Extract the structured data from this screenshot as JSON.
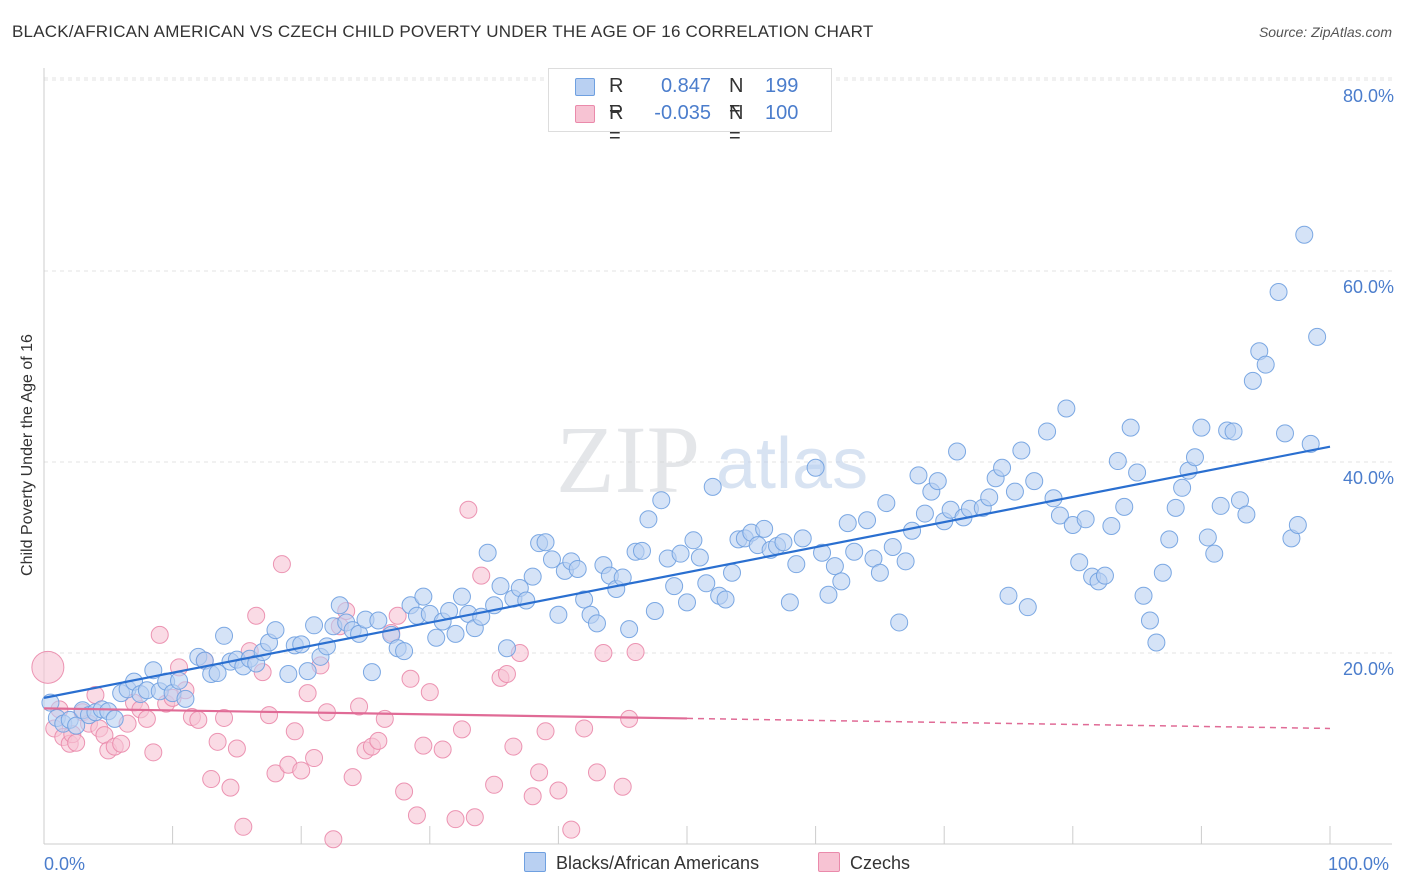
{
  "title": "BLACK/AFRICAN AMERICAN VS CZECH CHILD POVERTY UNDER THE AGE OF 16 CORRELATION CHART",
  "source": "Source: ZipAtlas.com",
  "watermark": {
    "zip": "ZIP",
    "atlas": "atlas"
  },
  "legend": {
    "r_label": "R =",
    "n_label": "N =",
    "series": [
      {
        "name": "Blacks/African Americans",
        "r": "0.847",
        "n": "199",
        "color": "#6fa0e0",
        "fill": "#b9d0f2"
      },
      {
        "name": "Czechs",
        "r": "-0.035",
        "n": "100",
        "color": "#ea8aab",
        "fill": "#f7c3d3"
      }
    ]
  },
  "colors": {
    "accent_text": "#4b7dcc",
    "blue_line": "#2a6fd0",
    "pink_line": "#e06b96"
  },
  "chart_data": {
    "type": "scatter",
    "title": "BLACK/AFRICAN AMERICAN VS CZECH CHILD POVERTY UNDER THE AGE OF 16 CORRELATION CHART",
    "xlabel": "",
    "ylabel": "Child Poverty Under the Age of 16",
    "xlim": [
      0,
      100
    ],
    "ylim": [
      0,
      80
    ],
    "x_tick_labels": [
      "0.0%",
      "100.0%"
    ],
    "y_tick_labels": [
      {
        "value": 20,
        "label": "20.0%"
      },
      {
        "value": 40,
        "label": "40.0%"
      },
      {
        "value": 60,
        "label": "60.0%"
      },
      {
        "value": 80,
        "label": "80.0%"
      }
    ],
    "grid": true,
    "series": [
      {
        "name": "Blacks/African Americans",
        "r": 0.847,
        "n": 199,
        "trend": {
          "x0": 0,
          "y0": 15.3,
          "x1": 100,
          "y1": 41.6,
          "dashed_from": null
        },
        "points": [
          [
            0.5,
            14.8
          ],
          [
            1,
            13.2
          ],
          [
            1.5,
            12.6
          ],
          [
            2,
            13
          ],
          [
            2.5,
            12.4
          ],
          [
            3,
            14
          ],
          [
            3.5,
            13.5
          ],
          [
            4,
            13.8
          ],
          [
            4.5,
            14.1
          ],
          [
            5,
            13.9
          ],
          [
            5.5,
            13.1
          ],
          [
            6,
            15.8
          ],
          [
            6.5,
            16.2
          ],
          [
            7,
            17
          ],
          [
            7.5,
            15.7
          ],
          [
            8,
            16.1
          ],
          [
            8.5,
            18.2
          ],
          [
            9,
            16
          ],
          [
            9.5,
            17
          ],
          [
            10,
            15.8
          ],
          [
            10.5,
            17.1
          ],
          [
            11,
            15.2
          ],
          [
            12,
            19.6
          ],
          [
            12.5,
            19.2
          ],
          [
            13,
            17.8
          ],
          [
            13.5,
            17.9
          ],
          [
            14,
            21.8
          ],
          [
            14.5,
            19.1
          ],
          [
            15,
            19.3
          ],
          [
            15.5,
            18.6
          ],
          [
            16,
            19.4
          ],
          [
            16.5,
            18.9
          ],
          [
            17,
            20.1
          ],
          [
            17.5,
            21.1
          ],
          [
            18,
            22.4
          ],
          [
            19,
            17.8
          ],
          [
            19.5,
            20.8
          ],
          [
            20,
            20.9
          ],
          [
            20.5,
            18.1
          ],
          [
            21,
            22.9
          ],
          [
            21.5,
            19.6
          ],
          [
            22,
            20.7
          ],
          [
            22.5,
            22.8
          ],
          [
            23,
            25
          ],
          [
            23.5,
            23.2
          ],
          [
            24,
            22.4
          ],
          [
            24.5,
            22
          ],
          [
            25,
            23.5
          ],
          [
            25.5,
            18
          ],
          [
            26,
            23.4
          ],
          [
            27,
            21.9
          ],
          [
            27.5,
            20.5
          ],
          [
            28,
            20.2
          ],
          [
            28.5,
            25
          ],
          [
            29,
            23.9
          ],
          [
            29.5,
            25.9
          ],
          [
            30,
            24.1
          ],
          [
            30.5,
            21.6
          ],
          [
            31,
            23.3
          ],
          [
            31.5,
            24.4
          ],
          [
            32,
            22
          ],
          [
            32.5,
            25.9
          ],
          [
            33,
            24.1
          ],
          [
            33.5,
            22.6
          ],
          [
            34,
            23.8
          ],
          [
            34.5,
            30.5
          ],
          [
            35,
            25
          ],
          [
            35.5,
            27
          ],
          [
            36,
            20.5
          ],
          [
            36.5,
            25.7
          ],
          [
            37,
            26.8
          ],
          [
            37.5,
            25.5
          ],
          [
            38,
            28
          ],
          [
            38.5,
            31.5
          ],
          [
            39,
            31.6
          ],
          [
            39.5,
            29.8
          ],
          [
            40,
            24
          ],
          [
            40.5,
            28.6
          ],
          [
            41,
            29.6
          ],
          [
            41.5,
            28.8
          ],
          [
            42,
            25.6
          ],
          [
            42.5,
            24
          ],
          [
            43,
            23.1
          ],
          [
            43.5,
            29.2
          ],
          [
            44,
            28.1
          ],
          [
            44.5,
            26.7
          ],
          [
            45,
            27.9
          ],
          [
            45.5,
            22.5
          ],
          [
            46,
            30.6
          ],
          [
            46.5,
            30.7
          ],
          [
            47,
            34
          ],
          [
            47.5,
            24.4
          ],
          [
            48,
            36
          ],
          [
            48.5,
            29.9
          ],
          [
            49,
            27
          ],
          [
            49.5,
            30.4
          ],
          [
            50,
            25.3
          ],
          [
            50.5,
            31.8
          ],
          [
            51,
            30
          ],
          [
            51.5,
            27.3
          ],
          [
            52,
            37.4
          ],
          [
            52.5,
            26
          ],
          [
            53,
            25.6
          ],
          [
            53.5,
            28.4
          ],
          [
            54,
            31.9
          ],
          [
            54.5,
            32
          ],
          [
            55,
            32.6
          ],
          [
            55.5,
            31.3
          ],
          [
            56,
            33
          ],
          [
            56.5,
            30.8
          ],
          [
            57,
            31.2
          ],
          [
            57.5,
            31.6
          ],
          [
            58,
            25.3
          ],
          [
            58.5,
            29.3
          ],
          [
            59,
            32
          ],
          [
            60,
            39.4
          ],
          [
            60.5,
            30.5
          ],
          [
            61,
            26.1
          ],
          [
            61.5,
            29.1
          ],
          [
            62,
            27.5
          ],
          [
            62.5,
            33.6
          ],
          [
            63,
            30.6
          ],
          [
            64,
            33.9
          ],
          [
            64.5,
            29.9
          ],
          [
            65,
            28.4
          ],
          [
            65.5,
            35.7
          ],
          [
            66,
            31.1
          ],
          [
            66.5,
            23.2
          ],
          [
            67,
            29.6
          ],
          [
            67.5,
            32.8
          ],
          [
            68,
            38.6
          ],
          [
            68.5,
            34.6
          ],
          [
            69,
            36.9
          ],
          [
            69.5,
            38
          ],
          [
            70,
            33.8
          ],
          [
            70.5,
            35
          ],
          [
            71,
            41.1
          ],
          [
            71.5,
            34.2
          ],
          [
            72,
            35.1
          ],
          [
            73,
            35.2
          ],
          [
            73.5,
            36.3
          ],
          [
            74,
            38.3
          ],
          [
            74.5,
            39.4
          ],
          [
            75,
            26
          ],
          [
            75.5,
            36.9
          ],
          [
            76,
            41.2
          ],
          [
            76.5,
            24.8
          ],
          [
            77,
            38
          ],
          [
            78,
            43.2
          ],
          [
            78.5,
            36.2
          ],
          [
            79,
            34.4
          ],
          [
            79.5,
            45.6
          ],
          [
            80,
            33.4
          ],
          [
            80.5,
            29.5
          ],
          [
            81,
            34
          ],
          [
            81.5,
            28
          ],
          [
            82,
            27.5
          ],
          [
            82.5,
            28.1
          ],
          [
            83,
            33.3
          ],
          [
            83.5,
            40.1
          ],
          [
            84,
            35.3
          ],
          [
            84.5,
            43.6
          ],
          [
            85,
            38.9
          ],
          [
            85.5,
            26
          ],
          [
            86,
            23.4
          ],
          [
            86.5,
            21.1
          ],
          [
            87,
            28.4
          ],
          [
            87.5,
            31.9
          ],
          [
            88,
            35.2
          ],
          [
            88.5,
            37.3
          ],
          [
            89,
            39.1
          ],
          [
            89.5,
            40.5
          ],
          [
            90,
            43.6
          ],
          [
            90.5,
            32.1
          ],
          [
            91,
            30.4
          ],
          [
            91.5,
            35.4
          ],
          [
            92,
            43.3
          ],
          [
            92.5,
            43.2
          ],
          [
            93,
            36
          ],
          [
            93.5,
            34.5
          ],
          [
            94,
            48.5
          ],
          [
            94.5,
            51.6
          ],
          [
            95,
            50.2
          ],
          [
            96,
            57.8
          ],
          [
            96.5,
            43
          ],
          [
            97,
            32
          ],
          [
            97.5,
            33.4
          ],
          [
            98,
            63.8
          ],
          [
            98.5,
            41.9
          ],
          [
            99,
            53.1
          ]
        ]
      },
      {
        "name": "Czechs",
        "r": -0.035,
        "n": 100,
        "trend": {
          "x0": 0,
          "y0": 14.2,
          "x1": 100,
          "y1": 12.1,
          "dashed_from": 50
        },
        "points": [
          [
            0.3,
            18.5
          ],
          [
            0.8,
            12.1
          ],
          [
            1.2,
            14.1
          ],
          [
            1.5,
            11.2
          ],
          [
            2,
            10.5
          ],
          [
            2.2,
            11.5
          ],
          [
            2.5,
            10.6
          ],
          [
            3,
            13.8
          ],
          [
            3.5,
            12.6
          ],
          [
            4,
            15.6
          ],
          [
            4.3,
            12.1
          ],
          [
            4.7,
            11.4
          ],
          [
            5,
            9.8
          ],
          [
            5.5,
            10.2
          ],
          [
            6,
            10.5
          ],
          [
            6.5,
            12.6
          ],
          [
            7,
            14.8
          ],
          [
            7.5,
            14.1
          ],
          [
            8,
            13.1
          ],
          [
            8.5,
            9.6
          ],
          [
            9,
            21.9
          ],
          [
            9.5,
            14.7
          ],
          [
            10,
            15.3
          ],
          [
            10.5,
            18.5
          ],
          [
            11,
            16.1
          ],
          [
            11.5,
            13.3
          ],
          [
            12,
            13
          ],
          [
            12.5,
            19.2
          ],
          [
            13,
            6.8
          ],
          [
            13.5,
            10.7
          ],
          [
            14,
            13.2
          ],
          [
            14.5,
            5.9
          ],
          [
            15,
            10
          ],
          [
            15.5,
            1.8
          ],
          [
            16,
            20.2
          ],
          [
            16.5,
            23.9
          ],
          [
            17,
            18
          ],
          [
            17.5,
            13.5
          ],
          [
            18,
            7.4
          ],
          [
            18.5,
            29.3
          ],
          [
            19,
            8.3
          ],
          [
            19.5,
            11.8
          ],
          [
            20,
            7.7
          ],
          [
            20.5,
            15.8
          ],
          [
            21,
            9
          ],
          [
            21.5,
            18.7
          ],
          [
            22,
            13.8
          ],
          [
            22.5,
            0.5
          ],
          [
            23,
            22.8
          ],
          [
            23.5,
            24.4
          ],
          [
            24,
            7
          ],
          [
            24.5,
            14.4
          ],
          [
            25,
            9.8
          ],
          [
            25.5,
            10.2
          ],
          [
            26,
            10.8
          ],
          [
            26.5,
            13.1
          ],
          [
            27,
            22.1
          ],
          [
            27.5,
            23.9
          ],
          [
            28,
            5.5
          ],
          [
            28.5,
            17.3
          ],
          [
            29,
            3
          ],
          [
            29.5,
            10.3
          ],
          [
            30,
            15.9
          ],
          [
            31,
            9.9
          ],
          [
            32,
            2.6
          ],
          [
            32.5,
            12
          ],
          [
            33,
            35
          ],
          [
            33.5,
            2.8
          ],
          [
            34,
            28.1
          ],
          [
            35,
            6.2
          ],
          [
            35.5,
            17.4
          ],
          [
            36,
            17.8
          ],
          [
            36.5,
            10.2
          ],
          [
            37,
            20
          ],
          [
            38,
            5
          ],
          [
            38.5,
            7.5
          ],
          [
            39,
            11.8
          ],
          [
            40,
            5.6
          ],
          [
            41,
            1.5
          ],
          [
            42,
            12.1
          ],
          [
            43,
            7.5
          ],
          [
            43.5,
            20
          ],
          [
            45,
            6
          ],
          [
            45.5,
            13.1
          ],
          [
            46,
            20.1
          ]
        ]
      }
    ]
  }
}
